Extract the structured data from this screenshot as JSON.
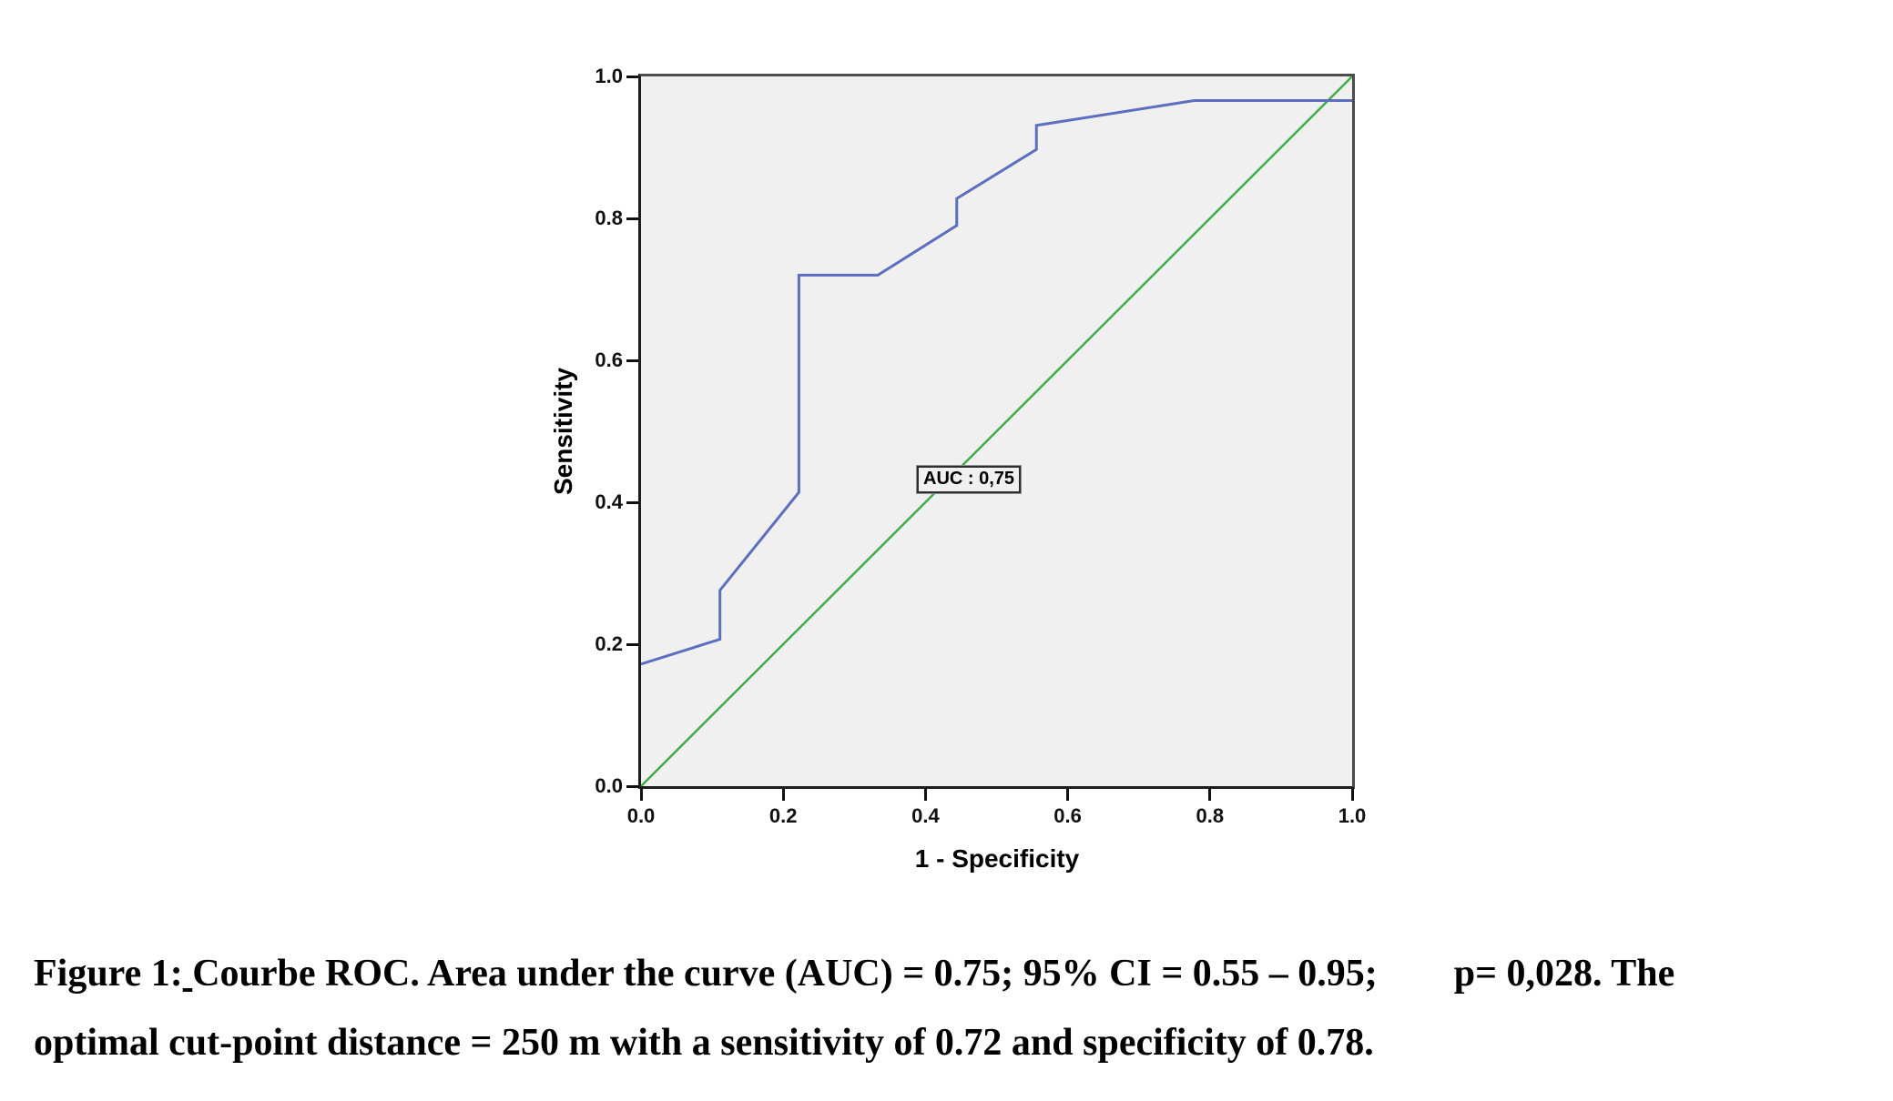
{
  "chart": {
    "x_axis_title": "1 - Specificity",
    "y_axis_title": "Sensitivity",
    "auc_label": "AUC : 0,75"
  },
  "chart_data": {
    "type": "line",
    "title": "",
    "xlabel": "1 - Specificity",
    "ylabel": "Sensitivity",
    "xlim": [
      0,
      1
    ],
    "ylim": [
      0,
      1
    ],
    "grid": false,
    "legend": "none",
    "plot_background": "#f0f0f0",
    "x_ticks": [
      0,
      0.2,
      0.4,
      0.6,
      0.8,
      1
    ],
    "x_tick_labels": [
      "0.0",
      "0.2",
      "0.4",
      "0.6",
      "0.8",
      "1.0"
    ],
    "y_ticks": [
      0,
      0.2,
      0.4,
      0.6,
      0.8,
      1
    ],
    "y_tick_labels": [
      "0.0",
      "0.2",
      "0.4",
      "0.6",
      "0.8",
      "1.0"
    ],
    "series": [
      {
        "name": "ROC curve",
        "type": "step-line",
        "color": "#5e6ebe",
        "stroke_width": 3,
        "points": [
          [
            0,
            0.172
          ],
          [
            0.111,
            0.207
          ],
          [
            0.111,
            0.276
          ],
          [
            0.222,
            0.414
          ],
          [
            0.222,
            0.72
          ],
          [
            0.333,
            0.72
          ],
          [
            0.444,
            0.79
          ],
          [
            0.444,
            0.828
          ],
          [
            0.556,
            0.897
          ],
          [
            0.556,
            0.931
          ],
          [
            0.778,
            0.966
          ],
          [
            1,
            0.966
          ]
        ]
      },
      {
        "name": "Reference diagonal",
        "type": "line",
        "color": "#3fae4a",
        "stroke_width": 2.5,
        "points": [
          [
            0,
            0
          ],
          [
            1,
            1
          ]
        ]
      }
    ],
    "annotations": [
      {
        "text": "AUC : 0,75",
        "x": 0.461,
        "y": 0.432
      }
    ],
    "auc": 0.75
  },
  "caption": {
    "figure_label": "Figure 1:",
    "underlined_space": " ",
    "line1_rest": "Courbe ROC. Area under the curve (AUC) = 0.75; 95% CI = 0.55 – 0.95;        p= 0,028. The",
    "line2": "optimal cut-point distance = 250 m with a sensitivity of 0.72 and specificity of 0.78."
  },
  "colors": {
    "plot_background": "#f0f0f0",
    "roc_curve": "#5e6ebe",
    "reference_line": "#3fae4a",
    "frame_dark": "#1c1c1c",
    "frame_gray": "#4d4d4d",
    "text": "#000000"
  }
}
